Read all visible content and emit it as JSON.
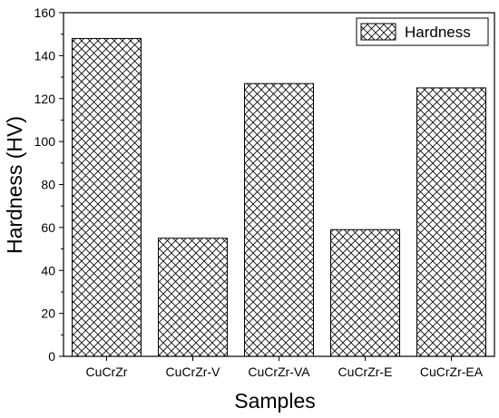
{
  "chart_data": {
    "type": "bar",
    "xlabel": "Samples",
    "ylabel": "Hardness (HV)",
    "categories": [
      "CuCrZr",
      "CuCrZr-V",
      "CuCrZr-VA",
      "CuCrZr-E",
      "CuCrZr-EA"
    ],
    "series": [
      {
        "name": "Hardness",
        "values": [
          148,
          55,
          127,
          59,
          125
        ]
      }
    ],
    "ylim": [
      0,
      160
    ],
    "yticks": [
      0,
      20,
      40,
      60,
      80,
      100,
      120,
      140,
      160
    ],
    "grid": false,
    "legend_position": "top-right",
    "bar_pattern": "crosshatch",
    "bar_color": "#ffffff",
    "edge_color": "#000000"
  }
}
